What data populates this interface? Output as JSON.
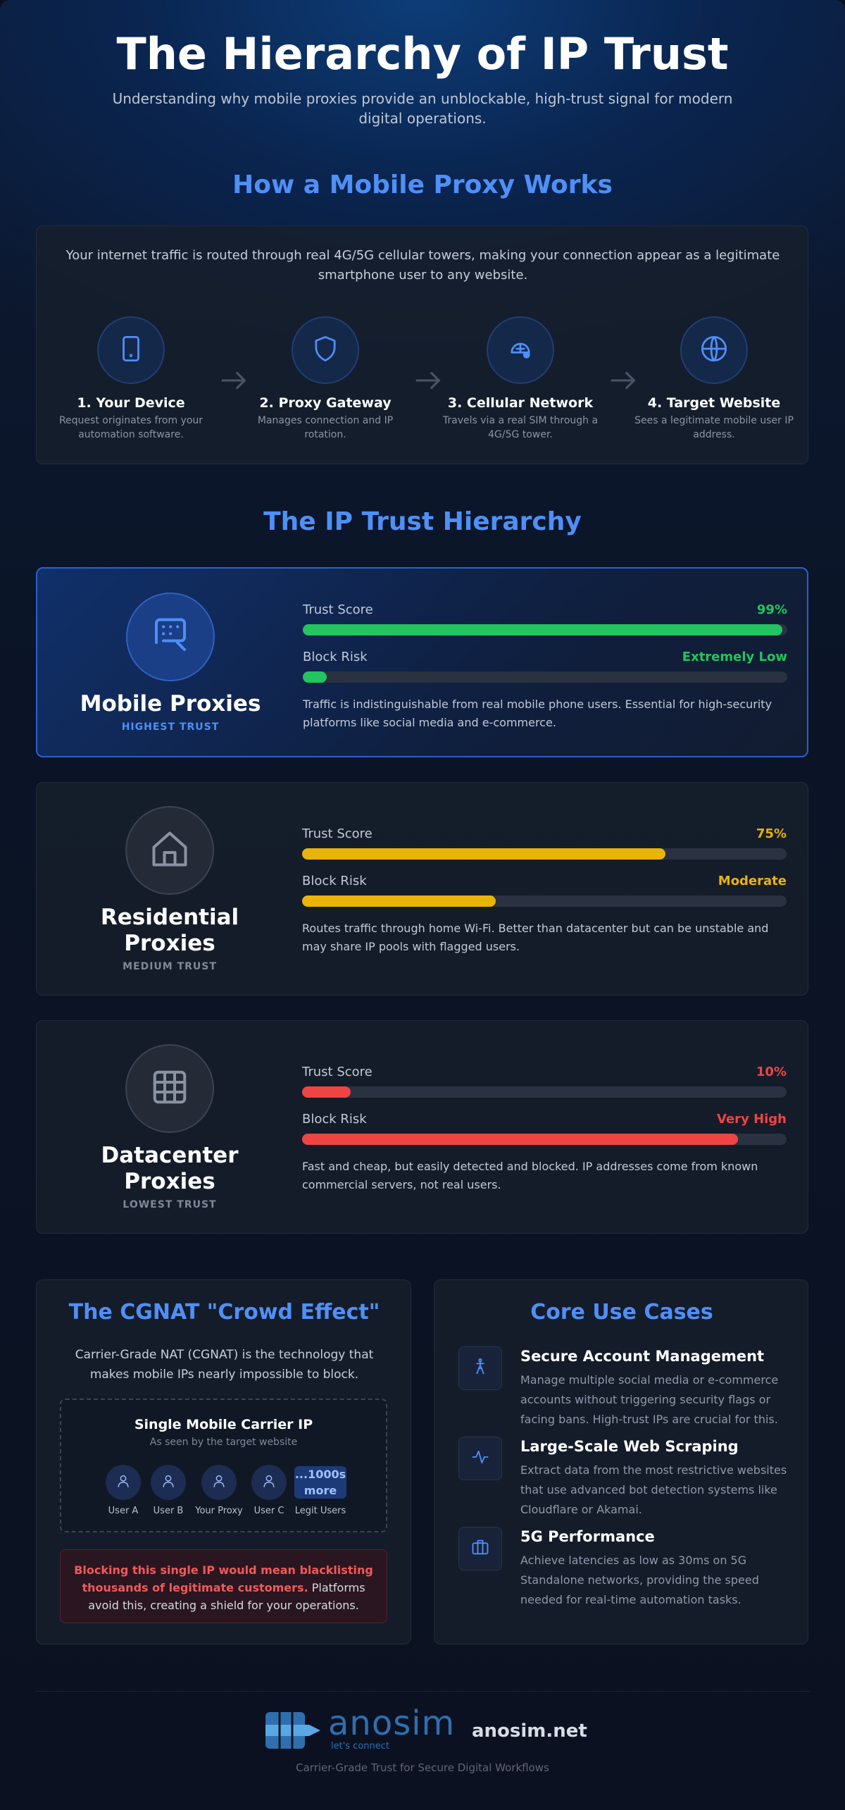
{
  "header": {
    "title": "The Hierarchy of IP Trust",
    "subtitle": "Understanding why mobile proxies provide an unblockable, high-trust signal for modern digital operations."
  },
  "how_it_works": {
    "title": "How a Mobile Proxy Works",
    "intro": "Your internet traffic is routed through real 4G/5G cellular towers, making your connection appear as a legitimate smartphone user to any website.",
    "steps": [
      {
        "title": "1. Your Device",
        "description": "Request originates from your automation software."
      },
      {
        "title": "2. Proxy Gateway",
        "description": "Manages connection and IP rotation."
      },
      {
        "title": "3. Cellular Network",
        "description": "Travels via a real SIM through a 4G/5G tower."
      },
      {
        "title": "4. Target Website",
        "description": "Sees a legitimate mobile user IP address."
      }
    ]
  },
  "hierarchy": {
    "title": "The IP Trust Hierarchy",
    "tiers": [
      {
        "name": "Mobile Proxies",
        "badge": "HIGHEST TRUST",
        "color": "#22c55e",
        "trust_label": "Trust Score",
        "trust_score": 99,
        "trust_score_label": "99%",
        "risk_label": "Block Risk",
        "block_risk": 5,
        "block_risk_level": "Extremely Low",
        "description": "Traffic is indistinguishable from real mobile phone users. Essential for high-security platforms like social media and e-commerce."
      },
      {
        "name": "Residential Proxies",
        "badge": "MEDIUM TRUST",
        "color": "#eab308",
        "trust_label": "Trust Score",
        "trust_score": 75,
        "trust_score_label": "75%",
        "risk_label": "Block Risk",
        "block_risk": 40,
        "block_risk_level": "Moderate",
        "description": "Routes traffic through home Wi-Fi. Better than datacenter but can be unstable and may share IP pools with flagged users."
      },
      {
        "name": "Datacenter Proxies",
        "badge": "LOWEST TRUST",
        "color": "#ef4444",
        "trust_label": "Trust Score",
        "trust_score": 10,
        "trust_score_label": "10%",
        "risk_label": "Block Risk",
        "block_risk": 90,
        "block_risk_level": "Very High",
        "description": "Fast and cheap, but easily detected and blocked. IP addresses come from known commercial servers, not real users."
      }
    ]
  },
  "cgnat": {
    "title": "The CGNAT \"Crowd Effect\"",
    "intro": "Carrier-Grade NAT (CGNAT) is the technology that makes mobile IPs nearly impossible to block.",
    "box_title": "Single Mobile Carrier IP",
    "box_subtitle": "As seen by the target website",
    "users": [
      "User A",
      "User B",
      "Your Proxy",
      "User C"
    ],
    "more": "...1000s more",
    "more_label": "Legit Users",
    "warning_bold": "Blocking this single IP would mean blacklisting thousands of legitimate customers.",
    "warning_rest": "Platforms avoid this, creating a shield for your operations."
  },
  "use_cases": {
    "title": "Core Use Cases",
    "items": [
      {
        "title": "Secure Account Management",
        "description": "Manage multiple social media or e-commerce accounts without triggering security flags or facing bans. High-trust IPs are crucial for this."
      },
      {
        "title": "Large-Scale Web Scraping",
        "description": "Extract data from the most restrictive websites that use advanced bot detection systems like Cloudflare or Akamai."
      },
      {
        "title": "5G Performance",
        "description": "Achieve latencies as low as 30ms on 5G Standalone networks, providing the speed needed for real-time automation tasks."
      }
    ]
  },
  "footer": {
    "brand": "anosim",
    "brand_tagline": "let's connect",
    "site": "anosim.net",
    "tagline": "Carrier-Grade Trust for Secure Digital Workflows"
  }
}
